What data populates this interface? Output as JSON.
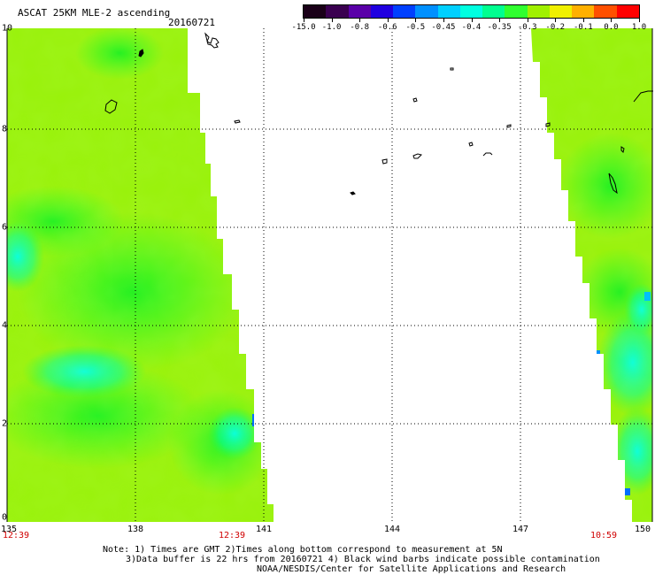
{
  "header": {
    "title": "ASCAT 25KM MLE-2 ascending",
    "date": "20160721"
  },
  "colorbar": {
    "labels": [
      "-15.0",
      "-1.0",
      "-0.8",
      "-0.6",
      "-0.5",
      "-0.45",
      "-0.4",
      "-0.35",
      "-0.3",
      "-0.2",
      "-0.1",
      "0.0",
      "1.0"
    ],
    "colors": [
      "#1a0018",
      "#3a0050",
      "#5a00a8",
      "#2000e0",
      "#0040ff",
      "#0090ff",
      "#00d0ff",
      "#00ffe0",
      "#00ff90",
      "#30ff30",
      "#a0f000",
      "#f0f000",
      "#ffb000",
      "#ff5000",
      "#ff0000"
    ]
  },
  "map": {
    "y_labels": [
      "10",
      "8",
      "6",
      "4",
      "2",
      "0"
    ],
    "x_labels": [
      "135",
      "138",
      "141",
      "144",
      "147",
      "150"
    ],
    "times": [
      "12:39",
      "12:39",
      "10:59"
    ]
  },
  "footer": {
    "line1": "Note: 1) Times are GMT 2)Times along bottom correspond to measurement at 5N",
    "line2": "3)Data buffer is 22 hrs from 20160721 4) Black wind barbs indicate possible contamination",
    "line3": "NOAA/NESDIS/Center for Satellite Applications and Research"
  }
}
